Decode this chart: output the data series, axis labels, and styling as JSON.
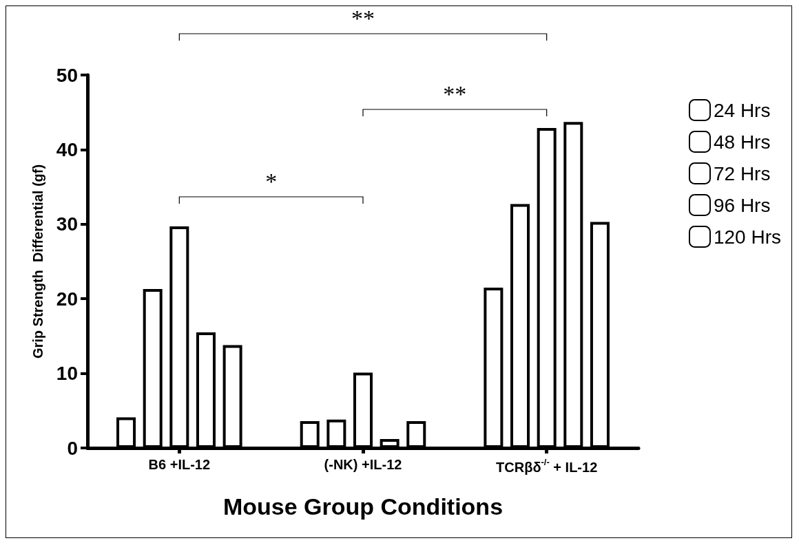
{
  "chart_data": {
    "type": "bar",
    "xlabel": "Mouse Group Conditions",
    "ylabel": "Grip Strength  Differential (gf)",
    "categories": [
      "B6 +IL-12",
      "(-NK) +IL-12",
      "TCRβδ$^{-/-}$ + IL-12"
    ],
    "series": [
      {
        "name": "24 Hrs",
        "color": "#000000",
        "values": [
          4.1,
          3.6,
          21.5
        ]
      },
      {
        "name": "48 Hrs",
        "color": "#000000",
        "values": [
          21.3,
          3.8,
          32.7
        ]
      },
      {
        "name": "72 Hrs",
        "color": "#000000",
        "values": [
          29.7,
          10.1,
          42.9
        ]
      },
      {
        "name": "96 Hrs",
        "color": "#000000",
        "values": [
          15.5,
          1.2,
          43.7
        ]
      },
      {
        "name": "120 Hrs",
        "color": "#000000",
        "values": [
          13.8,
          3.6,
          30.3
        ]
      }
    ],
    "ylim": [
      0,
      50
    ],
    "yticks": [
      0,
      10,
      20,
      30,
      40,
      50
    ],
    "grid": false,
    "legend": "right",
    "annotations": [
      "*",
      "**",
      "**"
    ]
  }
}
